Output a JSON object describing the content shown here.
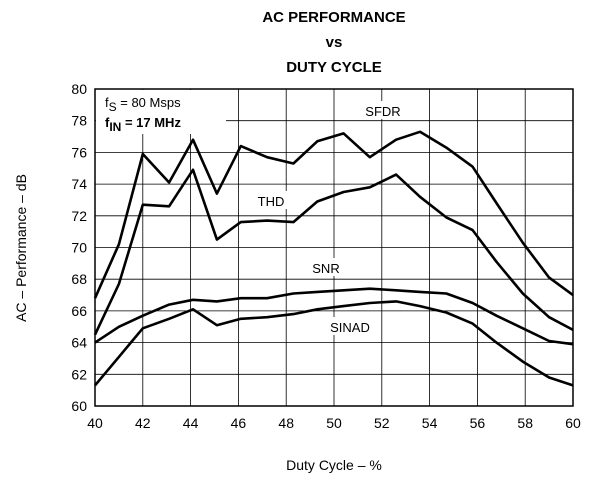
{
  "chart_data": {
    "type": "line",
    "title": [
      "AC PERFORMANCE",
      "vs",
      "DUTY CYCLE"
    ],
    "x_label": "Duty Cycle – %",
    "y_label": "AC – Performance – dB",
    "annotations": [
      {
        "text": "f",
        "subscript": "S",
        "suffix": " = 80 Msps"
      },
      {
        "text": "f",
        "subscript": "IN",
        "suffix": " = 17 MHz"
      }
    ],
    "x": [
      40,
      41,
      42,
      43.1,
      44.1,
      45.1,
      46.1,
      47.2,
      48.3,
      49.3,
      50.4,
      51.5,
      52.6,
      53.6,
      54.7,
      55.8,
      56.8,
      57.9,
      59,
      60
    ],
    "series": [
      {
        "name": "SFDR",
        "color": "#000000",
        "values": [
          66.8,
          70.2,
          75.9,
          74.1,
          76.8,
          73.4,
          76.4,
          75.7,
          75.3,
          76.7,
          77.2,
          75.7,
          76.8,
          77.3,
          76.3,
          75.1,
          72.8,
          70.3,
          68.1,
          67.0
        ]
      },
      {
        "name": "THD",
        "color": "#000000",
        "values": [
          64.5,
          67.7,
          72.7,
          72.6,
          74.9,
          70.5,
          71.6,
          71.7,
          71.6,
          72.9,
          73.5,
          73.8,
          74.6,
          73.2,
          71.9,
          71.1,
          69.1,
          67.1,
          65.6,
          64.8
        ]
      },
      {
        "name": "SNR",
        "color": "#000000",
        "values": [
          64.0,
          65.0,
          65.7,
          66.4,
          66.7,
          66.6,
          66.8,
          66.8,
          67.1,
          67.2,
          67.3,
          67.4,
          67.3,
          67.2,
          67.1,
          66.5,
          65.7,
          64.9,
          64.1,
          63.9
        ]
      },
      {
        "name": "SINAD",
        "color": "#000000",
        "values": [
          61.3,
          63.1,
          64.9,
          65.5,
          66.1,
          65.1,
          65.5,
          65.6,
          65.8,
          66.1,
          66.3,
          66.5,
          66.6,
          66.3,
          65.9,
          65.2,
          64.0,
          62.8,
          61.8,
          61.3
        ]
      }
    ],
    "xlim": [
      40,
      60
    ],
    "xticks": [
      40,
      42,
      44,
      46,
      48,
      50,
      52,
      54,
      56,
      58,
      60
    ],
    "ylim": [
      60,
      80
    ],
    "yticks": [
      60,
      62,
      64,
      66,
      68,
      70,
      72,
      74,
      76,
      78,
      80
    ],
    "grid": true
  }
}
